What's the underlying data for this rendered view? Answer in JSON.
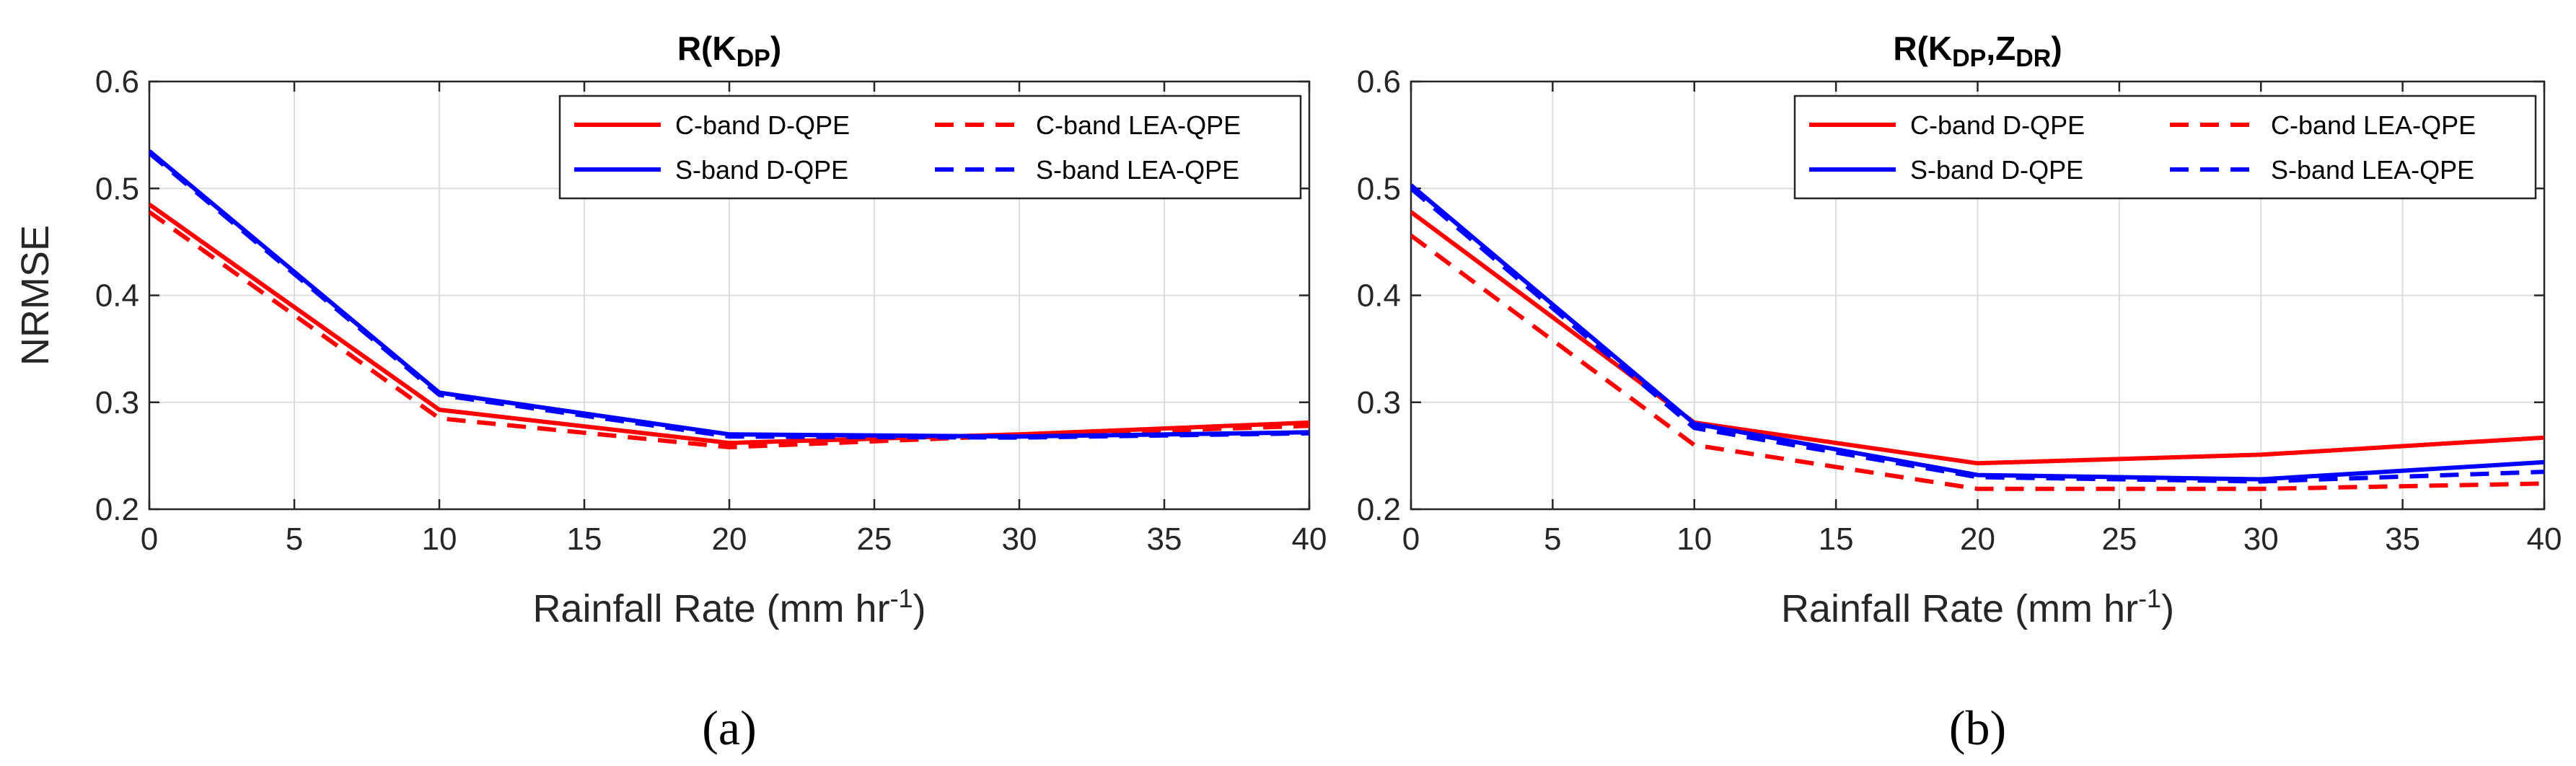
{
  "chart_data": [
    {
      "type": "line",
      "title": "R(K",
      "title_sub": "DP",
      "title_close": ")",
      "xlabel_main": "Rainfall Rate (mm hr",
      "xlabel_sup": "-1",
      "xlabel_close": ")",
      "ylabel": "NRMSE",
      "xlim": [
        0,
        40
      ],
      "ylim": [
        0.2,
        0.6
      ],
      "xticks": [
        "0",
        "5",
        "10",
        "15",
        "20",
        "25",
        "30",
        "35",
        "40"
      ],
      "yticks": [
        "0.2",
        "0.3",
        "0.4",
        "0.5",
        "0.6"
      ],
      "grid": true,
      "legend_position": "top-right",
      "panel_label": "(a)",
      "x": [
        0,
        10,
        20,
        30,
        40
      ],
      "series": [
        {
          "name": "C-band D-QPE",
          "color": "#ff0000",
          "dash": "solid",
          "values": [
            0.485,
            0.293,
            0.262,
            0.27,
            0.281
          ]
        },
        {
          "name": "C-band LEA-QPE",
          "color": "#ff0000",
          "dash": "dashed",
          "values": [
            0.478,
            0.285,
            0.258,
            0.269,
            0.278
          ]
        },
        {
          "name": "S-band D-QPE",
          "color": "#0000ff",
          "dash": "solid",
          "values": [
            0.535,
            0.309,
            0.27,
            0.268,
            0.272
          ]
        },
        {
          "name": "S-band LEA-QPE",
          "color": "#0000ff",
          "dash": "dashed",
          "values": [
            0.533,
            0.307,
            0.268,
            0.267,
            0.271
          ]
        }
      ]
    },
    {
      "type": "line",
      "title": "R(K",
      "title_sub": "DP",
      "title_mid": ",Z",
      "title_sub2": "DR",
      "title_close": ")",
      "xlabel_main": "Rainfall Rate (mm hr",
      "xlabel_sup": "-1",
      "xlabel_close": ")",
      "ylabel": "",
      "xlim": [
        0,
        40
      ],
      "ylim": [
        0.2,
        0.6
      ],
      "xticks": [
        "0",
        "5",
        "10",
        "15",
        "20",
        "25",
        "30",
        "35",
        "40"
      ],
      "yticks": [
        "0.2",
        "0.3",
        "0.4",
        "0.5",
        "0.6"
      ],
      "grid": true,
      "legend_position": "top-right",
      "panel_label": "(b)",
      "x": [
        0,
        10,
        20,
        30,
        40
      ],
      "series": [
        {
          "name": "C-band D-QPE",
          "color": "#ff0000",
          "dash": "solid",
          "values": [
            0.478,
            0.281,
            0.243,
            0.251,
            0.267
          ]
        },
        {
          "name": "C-band LEA-QPE",
          "color": "#ff0000",
          "dash": "dashed",
          "values": [
            0.456,
            0.26,
            0.219,
            0.219,
            0.224
          ]
        },
        {
          "name": "S-band D-QPE",
          "color": "#0000ff",
          "dash": "solid",
          "values": [
            0.503,
            0.28,
            0.232,
            0.228,
            0.244
          ]
        },
        {
          "name": "S-band LEA-QPE",
          "color": "#0000ff",
          "dash": "dashed",
          "values": [
            0.5,
            0.276,
            0.23,
            0.226,
            0.235
          ]
        }
      ]
    }
  ]
}
